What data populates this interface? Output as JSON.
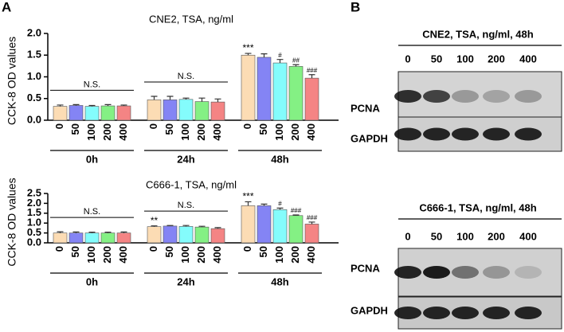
{
  "panel_labels": [
    "A",
    "B"
  ],
  "chart_data": [
    {
      "type": "bar",
      "title": "CNE2, TSA, ng/ml",
      "y_label": "CCK-8 OD values",
      "groups": [
        "0h",
        "24h",
        "48h"
      ],
      "categories": [
        "0",
        "50",
        "100",
        "200",
        "400"
      ],
      "colors": [
        "#fcdcb4",
        "#8484f4",
        "#84fcfc",
        "#84f084",
        "#f48484"
      ],
      "values": [
        [
          0.32,
          0.34,
          0.32,
          0.33,
          0.33
        ],
        [
          0.47,
          0.47,
          0.48,
          0.43,
          0.42
        ],
        [
          1.5,
          1.45,
          1.32,
          1.24,
          0.97
        ]
      ],
      "errors": [
        [
          0.03,
          0.02,
          0.02,
          0.03,
          0.02
        ],
        [
          0.08,
          0.08,
          0.03,
          0.08,
          0.07
        ],
        [
          0.04,
          0.08,
          0.08,
          0.04,
          0.08
        ]
      ],
      "bar_labels": [
        [
          null,
          null,
          null,
          null,
          null
        ],
        [
          null,
          null,
          null,
          null,
          null
        ],
        [
          "***",
          null,
          "#",
          "##",
          "###"
        ]
      ],
      "group_labels": [
        "N.S.",
        "N.S.",
        null
      ],
      "ylim": [
        0,
        2
      ],
      "yticks": [
        {
          "value": 0,
          "label": "0.0"
        },
        0.5,
        {
          "value": 1,
          "label": "1.0"
        },
        1.5,
        {
          "value": 2,
          "label": "2.0"
        }
      ]
    },
    {
      "type": "bar",
      "title": "C666-1, TSA, ng/ml",
      "y_label": "CCK-8 OD values",
      "groups": [
        "0h",
        "24h",
        "48h"
      ],
      "categories": [
        "0",
        "50",
        "100",
        "200",
        "400"
      ],
      "colors": [
        "#fcdcb4",
        "#8484f4",
        "#84fcfc",
        "#84f084",
        "#f48484"
      ],
      "values": [
        [
          0.5,
          0.5,
          0.5,
          0.5,
          0.5
        ],
        [
          0.82,
          0.85,
          0.83,
          0.8,
          0.72
        ],
        [
          1.88,
          1.88,
          1.68,
          1.38,
          0.95
        ]
      ],
      "errors": [
        [
          0.06,
          0.05,
          0.04,
          0.04,
          0.05
        ],
        [
          0.04,
          0.03,
          0.05,
          0.04,
          0.05
        ],
        [
          0.2,
          0.08,
          0.08,
          0.03,
          0.1
        ]
      ],
      "bar_labels": [
        [
          null,
          null,
          null,
          null,
          null
        ],
        [
          "**",
          null,
          null,
          null,
          null
        ],
        [
          "***",
          null,
          "#",
          "###",
          "###"
        ]
      ],
      "group_labels": [
        "N.S.",
        "N.S.",
        null
      ],
      "ylim": [
        0,
        2.5
      ],
      "yticks": [
        {
          "value": 0,
          "label": "0.0"
        },
        0.5,
        {
          "value": 1,
          "label": "1.0"
        },
        1.5,
        {
          "value": 2,
          "label": "2.0"
        },
        2.5
      ]
    }
  ],
  "blots": [
    {
      "title": "CNE2, TSA, ng/ml, 48h",
      "lanes": [
        "0",
        "50",
        "100",
        "200",
        "400"
      ],
      "rows": [
        "PCNA",
        "GAPDH"
      ]
    },
    {
      "title": "C666-1, TSA, ng/ml, 48h",
      "lanes": [
        "0",
        "50",
        "100",
        "200",
        "400"
      ],
      "rows": [
        "PCNA",
        "GAPDH"
      ]
    }
  ]
}
